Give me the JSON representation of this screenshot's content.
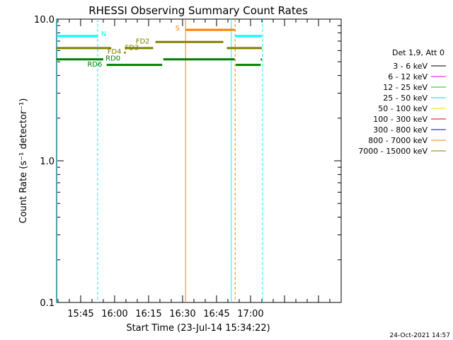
{
  "chart_data": {
    "type": "line",
    "title": "RHESSI Observing Summary Count Rates",
    "xlabel": "Start Time (23-Jul-14 15:34:22)",
    "ylabel": "Count Rate (s⁻¹ detector⁻¹)",
    "yscale": "log",
    "ylim": [
      0.1,
      10.0
    ],
    "yticks": [
      {
        "value": 0.1,
        "label": "0.1"
      },
      {
        "value": 1.0,
        "label": "1.0"
      },
      {
        "value": 10.0,
        "label": "10.0"
      }
    ],
    "xlim_minutes": [
      34.4,
      160.0
    ],
    "xticks": [
      {
        "minute": 45,
        "label": "15:45"
      },
      {
        "minute": 60,
        "label": "16:00"
      },
      {
        "minute": 75,
        "label": "16:15"
      },
      {
        "minute": 90,
        "label": "16:30"
      },
      {
        "minute": 105,
        "label": "16:45"
      },
      {
        "minute": 120,
        "label": "17:00"
      }
    ],
    "legend": {
      "placement": "right",
      "header": "Det 1,9, Att 0",
      "entries": [
        {
          "label": "3 - 6 keV",
          "color": "#000000"
        },
        {
          "label": "6 - 12 keV",
          "color": "#e000e0"
        },
        {
          "label": "12 - 25 keV",
          "color": "#00d000"
        },
        {
          "label": "25 - 50 keV",
          "color": "#00d8d8"
        },
        {
          "label": "50 - 100 keV",
          "color": "#e0e000"
        },
        {
          "label": "100 - 300 keV",
          "color": "#e00000"
        },
        {
          "label": "300 - 800 keV",
          "color": "#0000e0"
        },
        {
          "label": "800 - 7000 keV",
          "color": "#ff8000"
        },
        {
          "label": "7000 - 15000 keV",
          "color": "#808000"
        }
      ]
    },
    "flag_bars": [
      {
        "label": "N",
        "color": "#00ffff",
        "y": 7.6,
        "segments": [
          [
            34.4,
            52.5
          ],
          [
            113.0,
            125.0
          ]
        ]
      },
      {
        "label": "S",
        "color": "#ff8000",
        "y": 8.4,
        "segments": [
          [
            91.3,
            113.0
          ]
        ]
      },
      {
        "label": "FD2",
        "color": "#808000",
        "y": 6.9,
        "segments": [
          [
            78.0,
            108.0
          ]
        ]
      },
      {
        "label": "FD3",
        "color": "#808000",
        "y": 6.25,
        "segments": [
          [
            34.4,
            58.5
          ],
          [
            64.5,
            77.0
          ],
          [
            109.5,
            125.0
          ]
        ]
      },
      {
        "label": "FD4",
        "color": "#808000",
        "y": 5.8,
        "segments": [
          [
            64.2,
            64.9
          ]
        ]
      },
      {
        "label": "RD0",
        "color": "#008000",
        "y": 5.2,
        "segments": [
          [
            34.4,
            55.0
          ],
          [
            81.5,
            113.0
          ],
          [
            124.5,
            125.0
          ]
        ]
      },
      {
        "label": "RD6",
        "color": "#008000",
        "y": 4.75,
        "segments": [
          [
            56.5,
            81.0
          ],
          [
            113.5,
            124.5
          ]
        ]
      }
    ],
    "vertical_markers": [
      {
        "minute": 34.6,
        "color": "#00ffff",
        "style": "solid"
      },
      {
        "minute": 52.5,
        "color": "#00ffff",
        "style": "dashed"
      },
      {
        "minute": 91.3,
        "color": "#ff8000",
        "style": "solid"
      },
      {
        "minute": 111.5,
        "color": "#00ffff",
        "style": "solid"
      },
      {
        "minute": 113.2,
        "color": "#ff8000",
        "style": "dashed"
      },
      {
        "minute": 125.3,
        "color": "#00ffff",
        "style": "dashed"
      }
    ],
    "timestamp": "24-Oct-2021 14:57"
  }
}
